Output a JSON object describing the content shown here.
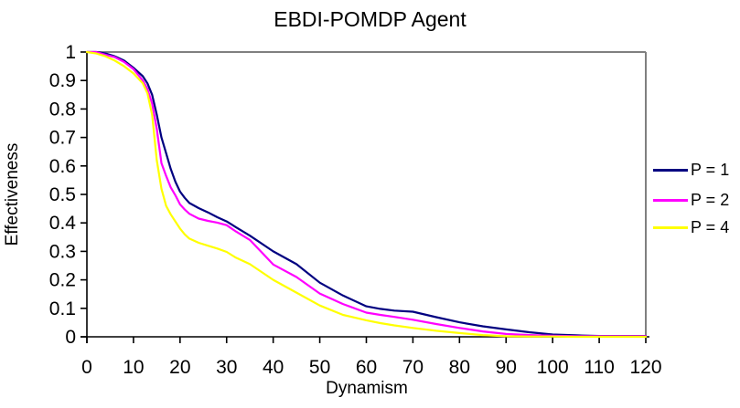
{
  "page": {
    "background": "#FFFFFF"
  },
  "chart_data": {
    "type": "line",
    "title": "EBDI-POMDP Agent",
    "xlabel": "Dynamism",
    "ylabel": "Effectiveness",
    "xlim": [
      0,
      120
    ],
    "ylim": [
      0,
      1
    ],
    "grid": false,
    "legend_position": "right",
    "axis_color": "#000000",
    "plot_border_color": "#808080",
    "x_tick_labels": [
      "0",
      "10",
      "20",
      "30",
      "40",
      "50",
      "60",
      "70",
      "80",
      "90",
      "100",
      "110",
      "120"
    ],
    "y_tick_labels": [
      "0",
      "0.1",
      "0.2",
      "0.3",
      "0.4",
      "0.5",
      "0.6",
      "0.7",
      "0.8",
      "0.9",
      "1"
    ],
    "x": [
      0,
      2,
      4,
      6,
      8,
      10,
      12,
      13,
      14,
      15,
      16,
      17,
      18,
      19,
      20,
      21,
      22,
      24,
      26,
      28,
      30,
      32,
      35,
      40,
      45,
      50,
      55,
      60,
      63,
      66,
      70,
      75,
      80,
      85,
      90,
      95,
      100,
      105,
      110,
      115,
      120
    ],
    "series": [
      {
        "name": "P = 1",
        "color": "#000080",
        "values": [
          1.0,
          1.0,
          0.995,
          0.985,
          0.97,
          0.945,
          0.915,
          0.89,
          0.85,
          0.78,
          0.7,
          0.645,
          0.59,
          0.545,
          0.51,
          0.488,
          0.47,
          0.452,
          0.437,
          0.42,
          0.405,
          0.385,
          0.355,
          0.3,
          0.255,
          0.19,
          0.145,
          0.107,
          0.098,
          0.092,
          0.088,
          0.069,
          0.051,
          0.037,
          0.026,
          0.016,
          0.008,
          0.005,
          0.003,
          0.003,
          0.003
        ]
      },
      {
        "name": "P = 2",
        "color": "#FF00FF",
        "values": [
          1.0,
          1.0,
          0.99,
          0.982,
          0.965,
          0.94,
          0.9,
          0.87,
          0.82,
          0.73,
          0.61,
          0.565,
          0.525,
          0.497,
          0.465,
          0.447,
          0.432,
          0.415,
          0.407,
          0.401,
          0.392,
          0.37,
          0.34,
          0.254,
          0.21,
          0.152,
          0.115,
          0.085,
          0.077,
          0.07,
          0.06,
          0.045,
          0.031,
          0.019,
          0.01,
          0.006,
          0.004,
          0.002,
          0.002,
          0.002,
          0.002
        ]
      },
      {
        "name": "P = 4",
        "color": "#FFFF00",
        "values": [
          1.0,
          0.995,
          0.985,
          0.97,
          0.95,
          0.925,
          0.89,
          0.855,
          0.78,
          0.62,
          0.52,
          0.46,
          0.43,
          0.405,
          0.38,
          0.36,
          0.345,
          0.33,
          0.32,
          0.31,
          0.298,
          0.278,
          0.255,
          0.2,
          0.155,
          0.11,
          0.077,
          0.058,
          0.048,
          0.04,
          0.031,
          0.021,
          0.013,
          0.006,
          0.002,
          0.001,
          0.001,
          0.0,
          0.0,
          0.0,
          0.0
        ]
      }
    ]
  }
}
